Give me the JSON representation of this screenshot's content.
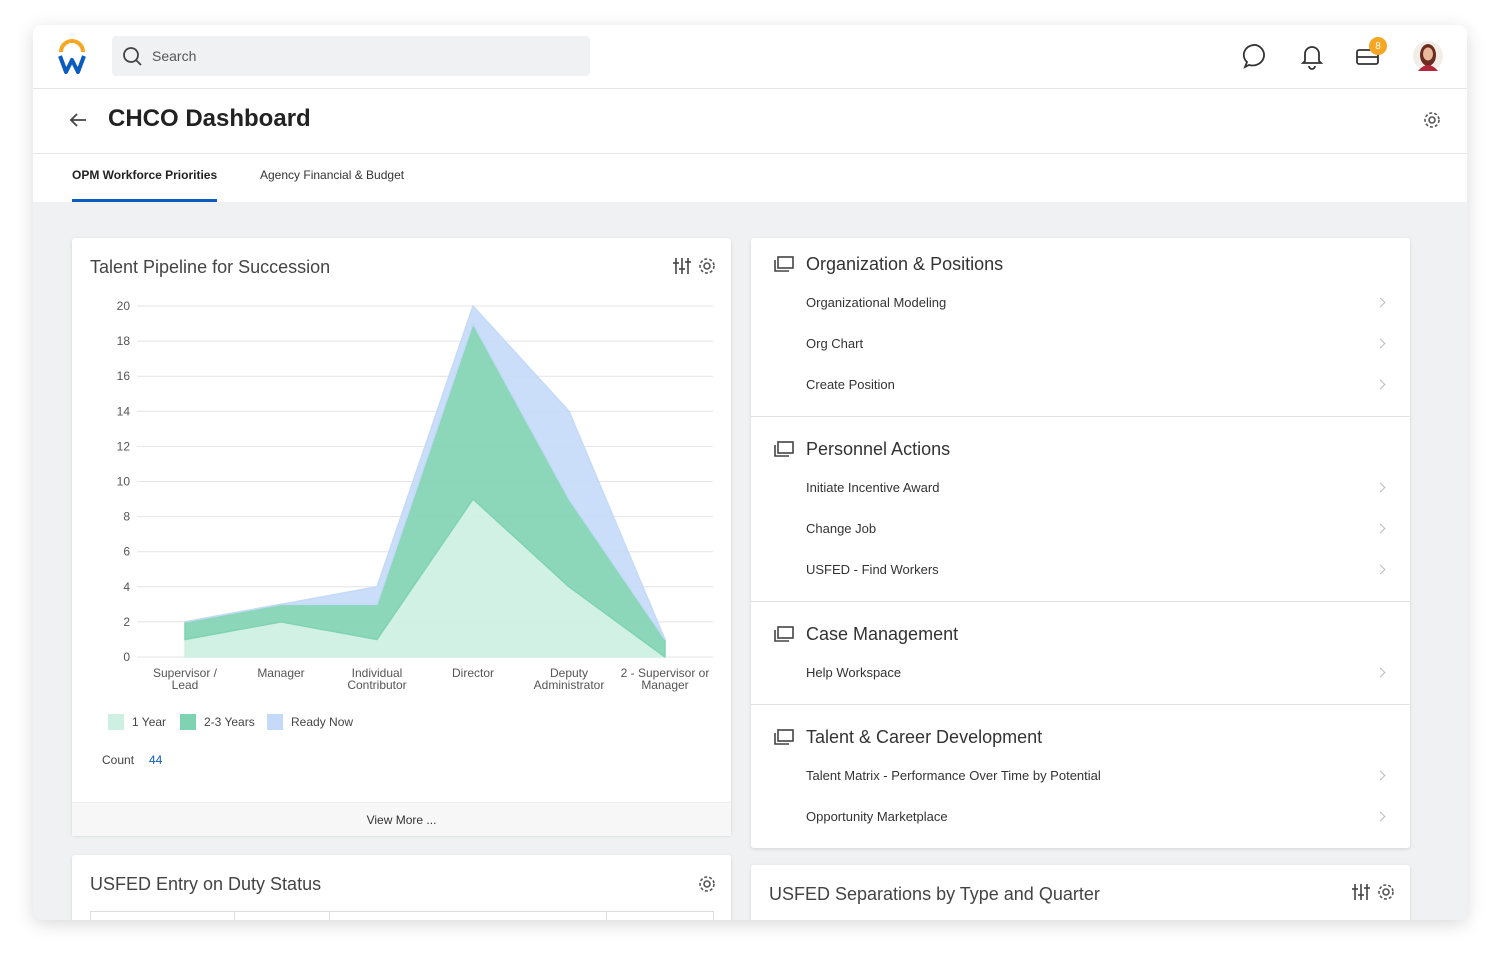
{
  "header": {
    "search_placeholder": "Search",
    "inbox_badge": 8
  },
  "page": {
    "title": "CHCO Dashboard",
    "tabs": [
      "OPM Workforce Priorities",
      "Agency Financial & Budget"
    ]
  },
  "chart_data": {
    "type": "stacked_area",
    "title": "Talent Pipeline for Succession",
    "categories": [
      "Supervisor / Lead",
      "Manager",
      "Individual Contributor",
      "Director",
      "Deputy Administrator",
      "2 - Supervisor or Manager"
    ],
    "series": [
      {
        "name": "1 Year",
        "color": "#cdf0e2",
        "values": [
          1,
          2,
          1,
          9,
          4,
          0
        ]
      },
      {
        "name": "2-3 Years",
        "color": "#7fd3b2",
        "values": [
          1,
          1,
          2,
          10,
          5,
          1
        ]
      },
      {
        "name": "Ready Now",
        "color": "#c4daf8",
        "values": [
          0,
          0,
          1,
          1,
          5,
          0
        ]
      }
    ],
    "ylim": [
      0,
      20
    ],
    "yticks": [
      0,
      2,
      4,
      6,
      8,
      10,
      12,
      14,
      16,
      18,
      20
    ],
    "grid": true,
    "legend": "bottom-left"
  },
  "pipeline_card": {
    "count_label": "Count",
    "count": 44,
    "link": "View More ..."
  },
  "menu": {
    "sections": [
      {
        "title": "Organization & Positions",
        "items": [
          "Organizational Modeling",
          "Org Chart",
          "Create Position"
        ]
      },
      {
        "title": "Personnel Actions",
        "items": [
          "Initiate Incentive Award",
          "Change Job",
          "USFED - Find Workers"
        ]
      },
      {
        "title": "Case Management",
        "items": [
          "Help Workspace"
        ]
      },
      {
        "title": "Talent & Career Development",
        "items": [
          "Talent Matrix - Performance Over Time by Potential",
          "Opportunity Marketplace"
        ]
      }
    ]
  },
  "cards": {
    "entry_on_duty": {
      "title": "USFED Entry on Duty Status"
    },
    "separations": {
      "title": "USFED Separations by Type and Quarter"
    }
  }
}
